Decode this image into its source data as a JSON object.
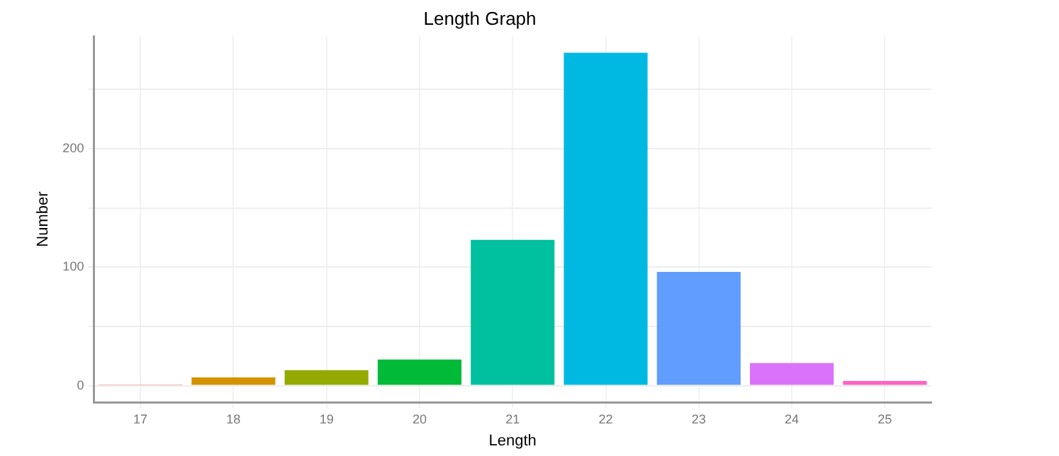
{
  "chart_data": {
    "type": "bar",
    "title": "Length Graph",
    "xlabel": "Length",
    "ylabel": "Number",
    "categories": [
      "17",
      "18",
      "19",
      "20",
      "21",
      "22",
      "23",
      "24",
      "25"
    ],
    "values": [
      1,
      7,
      13,
      22,
      123,
      281,
      96,
      19,
      4
    ],
    "colors": [
      "#f8766d",
      "#d39200",
      "#93aa00",
      "#00ba38",
      "#00c19f",
      "#00b9e3",
      "#619cff",
      "#db72fb",
      "#ff61c3"
    ],
    "ylim": [
      -14,
      295
    ],
    "yticks": [
      {
        "value": 0,
        "label": "0"
      },
      {
        "value": 50,
        "label": null
      },
      {
        "value": 100,
        "label": "100"
      },
      {
        "value": 150,
        "label": null
      },
      {
        "value": 200,
        "label": "200"
      },
      {
        "value": 250,
        "label": null
      }
    ],
    "grid": true,
    "legend": false
  }
}
